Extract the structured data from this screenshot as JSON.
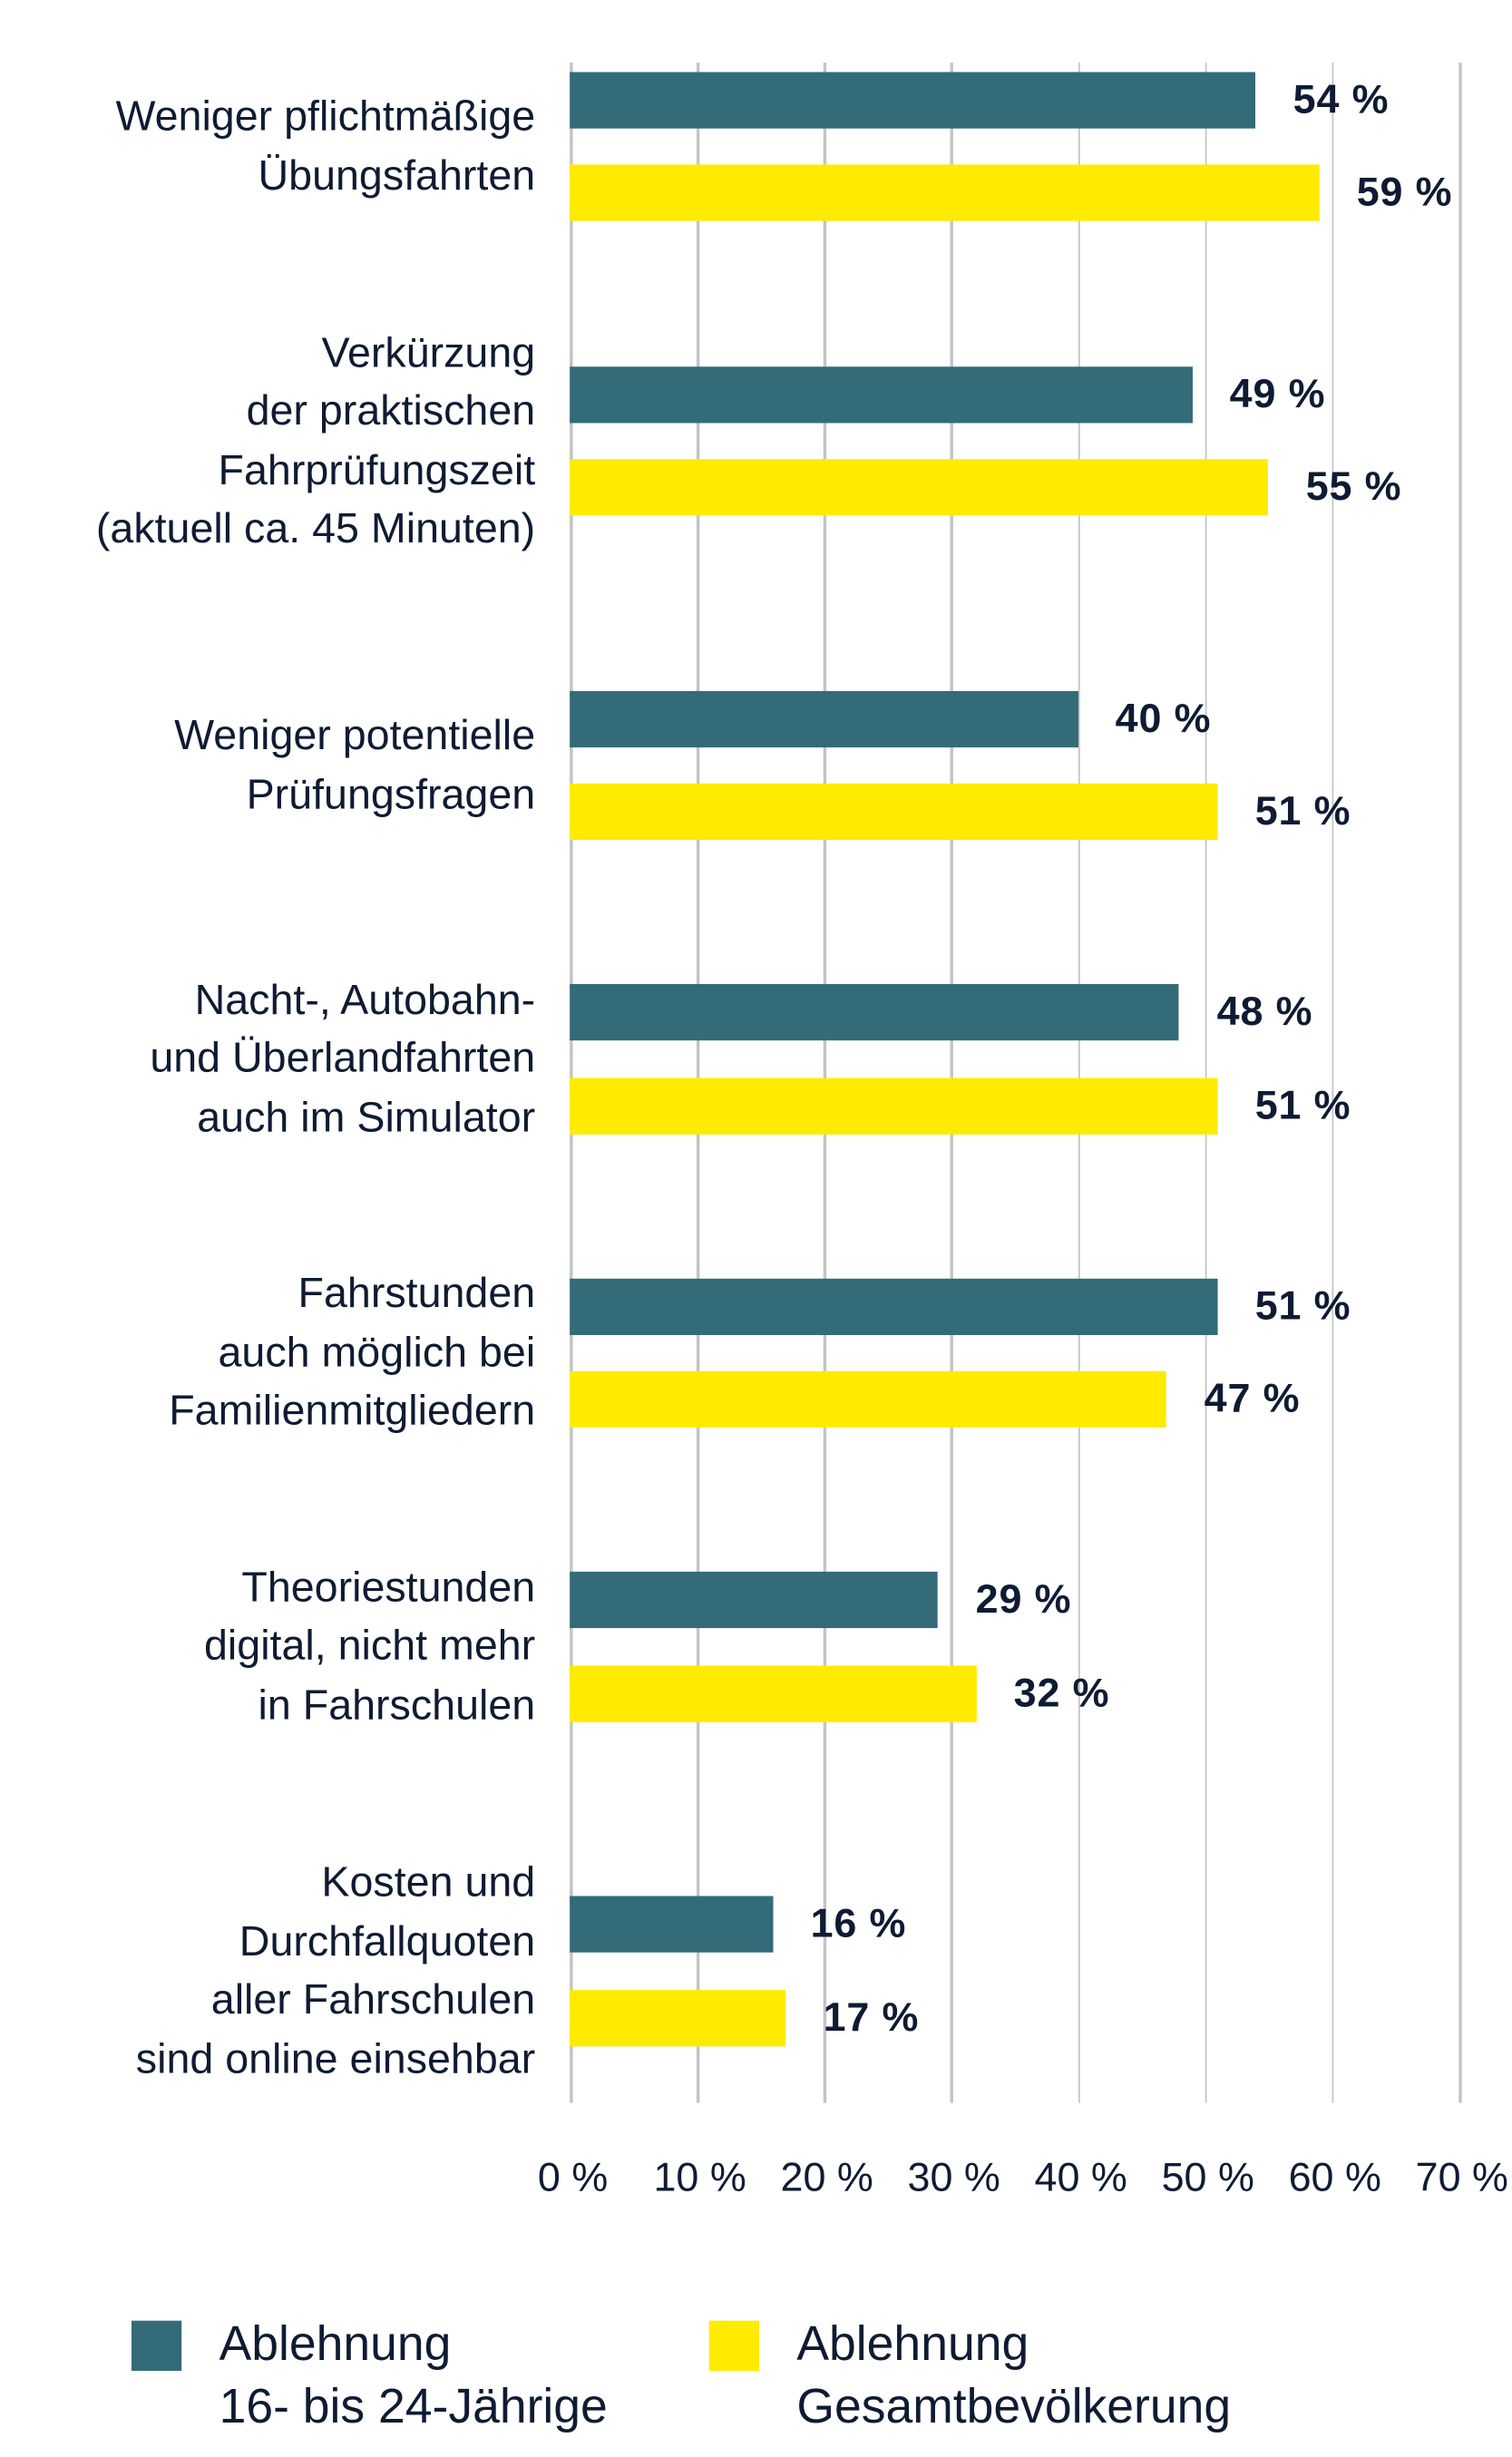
{
  "chart_data": {
    "type": "bar",
    "orientation": "horizontal",
    "title": "",
    "xlabel": "",
    "ylabel": "",
    "xlim": [
      0,
      70
    ],
    "x_ticks": [
      "0 %",
      "10 %",
      "20 %",
      "30 %",
      "40 %",
      "50 %",
      "60 %",
      "70 %"
    ],
    "grid": true,
    "legend_position": "bottom",
    "categories": [
      "Weniger pflichtmäßige\nÜbungsfahrten",
      "Verkürzung\nder praktischen\nFahrprüfungszeit\n(aktuell ca. 45 Minuten)",
      "Weniger potentielle\nPrüfungsfragen",
      "Nacht-, Autobahn-\nund Überlandfahrten\nauch im Simulator",
      "Fahrstunden\nauch möglich bei\nFamilienmitgliedern",
      "Theoriestunden\ndigital, nicht mehr\nin Fahrschulen",
      "Kosten und\nDurchfallquoten\naller Fahrschulen\nsind online einsehbar"
    ],
    "series": [
      {
        "name": "Ablehnung 16- bis 24-Jährige",
        "color": "#336b78",
        "values": [
          54,
          49,
          40,
          48,
          51,
          29,
          16
        ],
        "labels": [
          "54 %",
          "49 %",
          "40 %",
          "48 %",
          "51 %",
          "29 %",
          "16 %"
        ]
      },
      {
        "name": "Ablehnung Gesamtbevölkerung",
        "color": "#ffeb00",
        "values": [
          59,
          55,
          51,
          51,
          47,
          32,
          17
        ],
        "labels": [
          "59 %",
          "55 %",
          "51 %",
          "51 %",
          "47 %",
          "32 %",
          "17 %"
        ]
      }
    ]
  },
  "legend": {
    "items": [
      {
        "label": "Ablehnung\n16- bis 24-Jährige",
        "color": "#336b78"
      },
      {
        "label": "Ablehnung\nGesamtbevölkerung",
        "color": "#ffeb00"
      }
    ]
  },
  "colors": {
    "text": "#0e1b33",
    "grid": "#c4c4c4"
  }
}
